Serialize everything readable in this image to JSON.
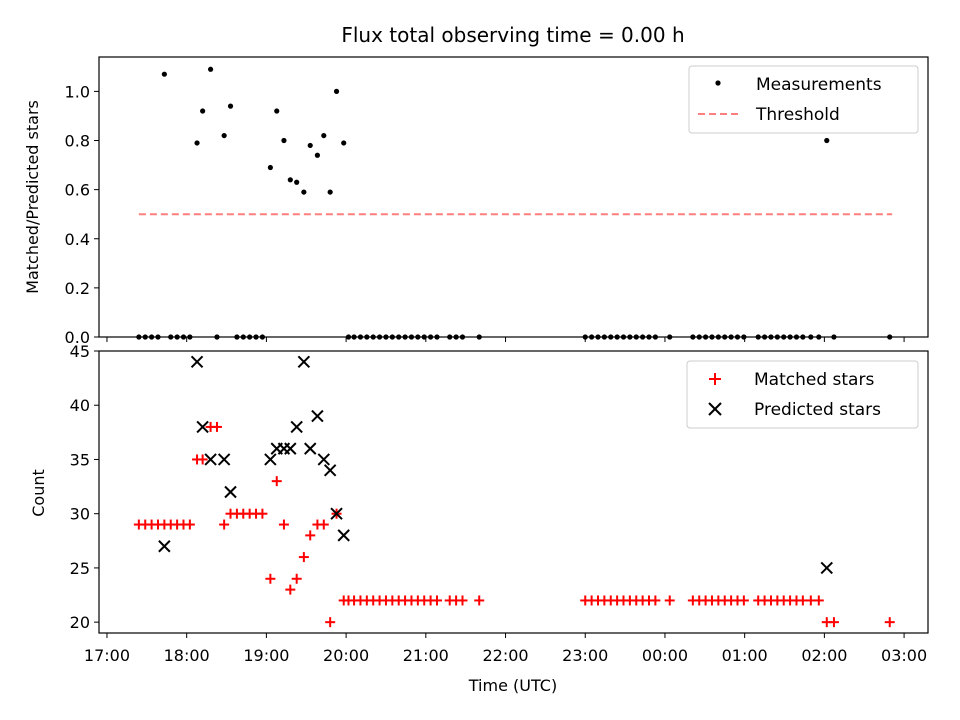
{
  "chart_data": [
    {
      "type": "scatter",
      "title": "Flux total observing time = 0.00 h",
      "xlabel": "",
      "ylabel": "Matched/Predicted stars",
      "ylim": [
        0.0,
        1.14
      ],
      "yticks": [
        "0.0",
        "0.2",
        "0.4",
        "0.6",
        "0.8",
        "1.0"
      ],
      "ytick_values": [
        0.0,
        0.2,
        0.4,
        0.6,
        0.8,
        1.0
      ],
      "legend_position": "top-right",
      "series": [
        {
          "name": "Measurements",
          "color": "#000000",
          "marker": "dot",
          "points": [
            [
              17.4,
              0
            ],
            [
              17.48,
              0
            ],
            [
              17.56,
              0
            ],
            [
              17.64,
              0
            ],
            [
              17.72,
              1.07
            ],
            [
              17.8,
              0
            ],
            [
              17.88,
              0
            ],
            [
              17.96,
              0
            ],
            [
              18.04,
              0
            ],
            [
              18.13,
              0.79
            ],
            [
              18.2,
              0.92
            ],
            [
              18.3,
              1.09
            ],
            [
              18.38,
              0
            ],
            [
              18.47,
              0.82
            ],
            [
              18.55,
              0.94
            ],
            [
              18.63,
              0
            ],
            [
              18.71,
              0
            ],
            [
              18.79,
              0
            ],
            [
              18.87,
              0
            ],
            [
              18.95,
              0
            ],
            [
              19.05,
              0.69
            ],
            [
              19.13,
              0.92
            ],
            [
              19.22,
              0.8
            ],
            [
              19.3,
              0.64
            ],
            [
              19.38,
              0.63
            ],
            [
              19.47,
              0.59
            ],
            [
              19.55,
              0.78
            ],
            [
              19.64,
              0.74
            ],
            [
              19.72,
              0.82
            ],
            [
              19.8,
              0.59
            ],
            [
              19.88,
              1.0
            ],
            [
              19.97,
              0.79
            ],
            [
              20.03,
              0
            ],
            [
              20.1,
              0
            ],
            [
              20.18,
              0
            ],
            [
              20.26,
              0
            ],
            [
              20.34,
              0
            ],
            [
              20.42,
              0
            ],
            [
              20.5,
              0
            ],
            [
              20.58,
              0
            ],
            [
              20.66,
              0
            ],
            [
              20.74,
              0
            ],
            [
              20.82,
              0
            ],
            [
              20.9,
              0
            ],
            [
              20.98,
              0
            ],
            [
              21.06,
              0
            ],
            [
              21.14,
              0
            ],
            [
              21.3,
              0
            ],
            [
              21.38,
              0
            ],
            [
              21.46,
              0
            ],
            [
              21.67,
              0
            ],
            [
              23.0,
              0
            ],
            [
              23.08,
              0
            ],
            [
              23.16,
              0
            ],
            [
              23.24,
              0
            ],
            [
              23.32,
              0
            ],
            [
              23.4,
              0
            ],
            [
              23.48,
              0
            ],
            [
              23.56,
              0
            ],
            [
              23.64,
              0
            ],
            [
              23.72,
              0
            ],
            [
              23.8,
              0
            ],
            [
              23.88,
              0
            ],
            [
              24.06,
              0
            ],
            [
              24.35,
              0
            ],
            [
              24.43,
              0
            ],
            [
              24.51,
              0
            ],
            [
              24.59,
              0
            ],
            [
              24.67,
              0
            ],
            [
              24.75,
              0
            ],
            [
              24.83,
              0
            ],
            [
              24.91,
              0
            ],
            [
              24.99,
              0
            ],
            [
              25.17,
              0
            ],
            [
              25.25,
              0
            ],
            [
              25.33,
              0
            ],
            [
              25.41,
              0
            ],
            [
              25.49,
              0
            ],
            [
              25.57,
              0
            ],
            [
              25.65,
              0
            ],
            [
              25.73,
              0
            ],
            [
              25.83,
              0
            ],
            [
              25.93,
              0
            ],
            [
              26.03,
              0.8
            ],
            [
              26.12,
              0
            ],
            [
              26.82,
              0
            ]
          ]
        },
        {
          "name": "Threshold",
          "color": "#ff7f7f",
          "style": "dashed",
          "x": [
            17.4,
            26.85
          ],
          "y": [
            0.5,
            0.5
          ]
        }
      ]
    },
    {
      "type": "scatter",
      "xlabel": "Time (UTC)",
      "ylabel": "Count",
      "ylim": [
        19,
        45
      ],
      "yticks": [
        "20",
        "25",
        "30",
        "35",
        "40",
        "45"
      ],
      "ytick_values": [
        20,
        25,
        30,
        35,
        40,
        45
      ],
      "xlim": [
        16.9,
        27.3
      ],
      "xticks": [
        "17:00",
        "18:00",
        "19:00",
        "20:00",
        "21:00",
        "22:00",
        "23:00",
        "00:00",
        "01:00",
        "02:00",
        "03:00"
      ],
      "xtick_values": [
        17,
        18,
        19,
        20,
        21,
        22,
        23,
        24,
        25,
        26,
        27
      ],
      "legend_position": "top-right",
      "series": [
        {
          "name": "Matched stars",
          "color": "#ff0000",
          "marker": "plus",
          "points": [
            [
              17.4,
              29
            ],
            [
              17.48,
              29
            ],
            [
              17.56,
              29
            ],
            [
              17.64,
              29
            ],
            [
              17.72,
              29
            ],
            [
              17.8,
              29
            ],
            [
              17.88,
              29
            ],
            [
              17.96,
              29
            ],
            [
              18.04,
              29
            ],
            [
              18.13,
              35
            ],
            [
              18.2,
              35
            ],
            [
              18.3,
              38
            ],
            [
              18.38,
              38
            ],
            [
              18.47,
              29
            ],
            [
              18.55,
              30
            ],
            [
              18.63,
              30
            ],
            [
              18.71,
              30
            ],
            [
              18.79,
              30
            ],
            [
              18.87,
              30
            ],
            [
              18.95,
              30
            ],
            [
              19.05,
              24
            ],
            [
              19.13,
              33
            ],
            [
              19.22,
              29
            ],
            [
              19.3,
              23
            ],
            [
              19.38,
              24
            ],
            [
              19.47,
              26
            ],
            [
              19.55,
              28
            ],
            [
              19.64,
              29
            ],
            [
              19.72,
              29
            ],
            [
              19.8,
              20
            ],
            [
              19.88,
              30
            ],
            [
              19.97,
              22
            ],
            [
              20.03,
              22
            ],
            [
              20.1,
              22
            ],
            [
              20.18,
              22
            ],
            [
              20.26,
              22
            ],
            [
              20.34,
              22
            ],
            [
              20.42,
              22
            ],
            [
              20.5,
              22
            ],
            [
              20.58,
              22
            ],
            [
              20.66,
              22
            ],
            [
              20.74,
              22
            ],
            [
              20.82,
              22
            ],
            [
              20.9,
              22
            ],
            [
              20.98,
              22
            ],
            [
              21.06,
              22
            ],
            [
              21.14,
              22
            ],
            [
              21.3,
              22
            ],
            [
              21.38,
              22
            ],
            [
              21.46,
              22
            ],
            [
              21.67,
              22
            ],
            [
              23.0,
              22
            ],
            [
              23.08,
              22
            ],
            [
              23.16,
              22
            ],
            [
              23.24,
              22
            ],
            [
              23.32,
              22
            ],
            [
              23.4,
              22
            ],
            [
              23.48,
              22
            ],
            [
              23.56,
              22
            ],
            [
              23.64,
              22
            ],
            [
              23.72,
              22
            ],
            [
              23.8,
              22
            ],
            [
              23.88,
              22
            ],
            [
              24.06,
              22
            ],
            [
              24.35,
              22
            ],
            [
              24.43,
              22
            ],
            [
              24.51,
              22
            ],
            [
              24.59,
              22
            ],
            [
              24.67,
              22
            ],
            [
              24.75,
              22
            ],
            [
              24.83,
              22
            ],
            [
              24.91,
              22
            ],
            [
              24.99,
              22
            ],
            [
              25.17,
              22
            ],
            [
              25.25,
              22
            ],
            [
              25.33,
              22
            ],
            [
              25.41,
              22
            ],
            [
              25.49,
              22
            ],
            [
              25.57,
              22
            ],
            [
              25.65,
              22
            ],
            [
              25.73,
              22
            ],
            [
              25.83,
              22
            ],
            [
              25.93,
              22
            ],
            [
              26.03,
              20
            ],
            [
              26.12,
              20
            ],
            [
              26.82,
              20
            ]
          ]
        },
        {
          "name": "Predicted stars",
          "color": "#000000",
          "marker": "x",
          "points": [
            [
              17.72,
              27
            ],
            [
              18.13,
              44
            ],
            [
              18.2,
              38
            ],
            [
              18.3,
              35
            ],
            [
              18.47,
              35
            ],
            [
              18.55,
              32
            ],
            [
              19.05,
              35
            ],
            [
              19.13,
              36
            ],
            [
              19.22,
              36
            ],
            [
              19.3,
              36
            ],
            [
              19.38,
              38
            ],
            [
              19.47,
              44
            ],
            [
              19.55,
              36
            ],
            [
              19.64,
              39
            ],
            [
              19.72,
              35
            ],
            [
              19.8,
              34
            ],
            [
              19.88,
              30
            ],
            [
              19.97,
              28
            ],
            [
              26.03,
              25
            ]
          ]
        }
      ]
    }
  ]
}
